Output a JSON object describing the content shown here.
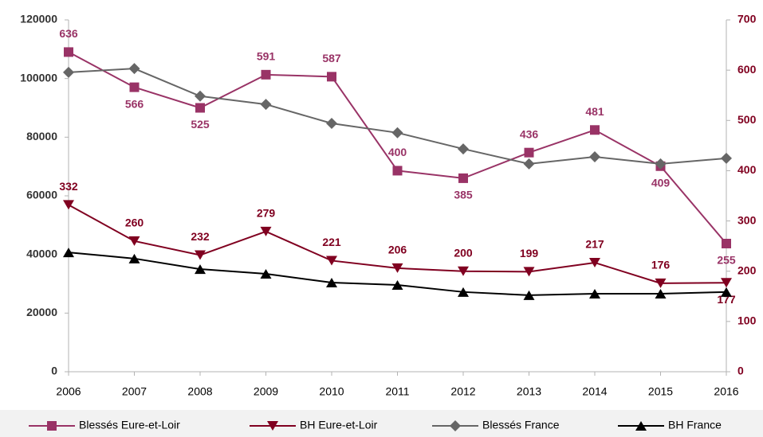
{
  "chart_data": {
    "type": "line",
    "categories": [
      "2006",
      "2007",
      "2008",
      "2009",
      "2010",
      "2011",
      "2012",
      "2013",
      "2014",
      "2015",
      "2016"
    ],
    "series": [
      {
        "name": "Blessés Eure-et-Loir",
        "color": "#993366",
        "axis": "y2",
        "marker": "square",
        "data_labels": true,
        "values": [
          636,
          566,
          525,
          591,
          587,
          400,
          385,
          436,
          481,
          409,
          255
        ]
      },
      {
        "name": "BH Eure-et-Loir",
        "color": "#800020",
        "axis": "y2",
        "marker": "triangle-down",
        "data_labels": true,
        "values": [
          332,
          260,
          232,
          279,
          221,
          206,
          200,
          199,
          217,
          176,
          177
        ]
      },
      {
        "name": "Blessés France",
        "color": "#666666",
        "axis": "y",
        "marker": "diamond",
        "data_labels": false,
        "values": [
          102100,
          103400,
          94000,
          91200,
          84700,
          81500,
          76000,
          70900,
          73300,
          70900,
          72800
        ]
      },
      {
        "name": "BH France",
        "color": "#000000",
        "axis": "y",
        "marker": "triangle-up",
        "data_labels": false,
        "values": [
          40700,
          38600,
          35000,
          33400,
          30400,
          29600,
          27200,
          26100,
          26600,
          26600,
          27200
        ]
      }
    ],
    "ylim": [
      0,
      120000
    ],
    "yticks": [
      0,
      20000,
      40000,
      60000,
      80000,
      100000,
      120000
    ],
    "y2lim": [
      0,
      700
    ],
    "y2ticks": [
      0,
      100,
      200,
      300,
      400,
      500,
      600,
      700
    ],
    "grid": false,
    "legend": "bottom"
  }
}
